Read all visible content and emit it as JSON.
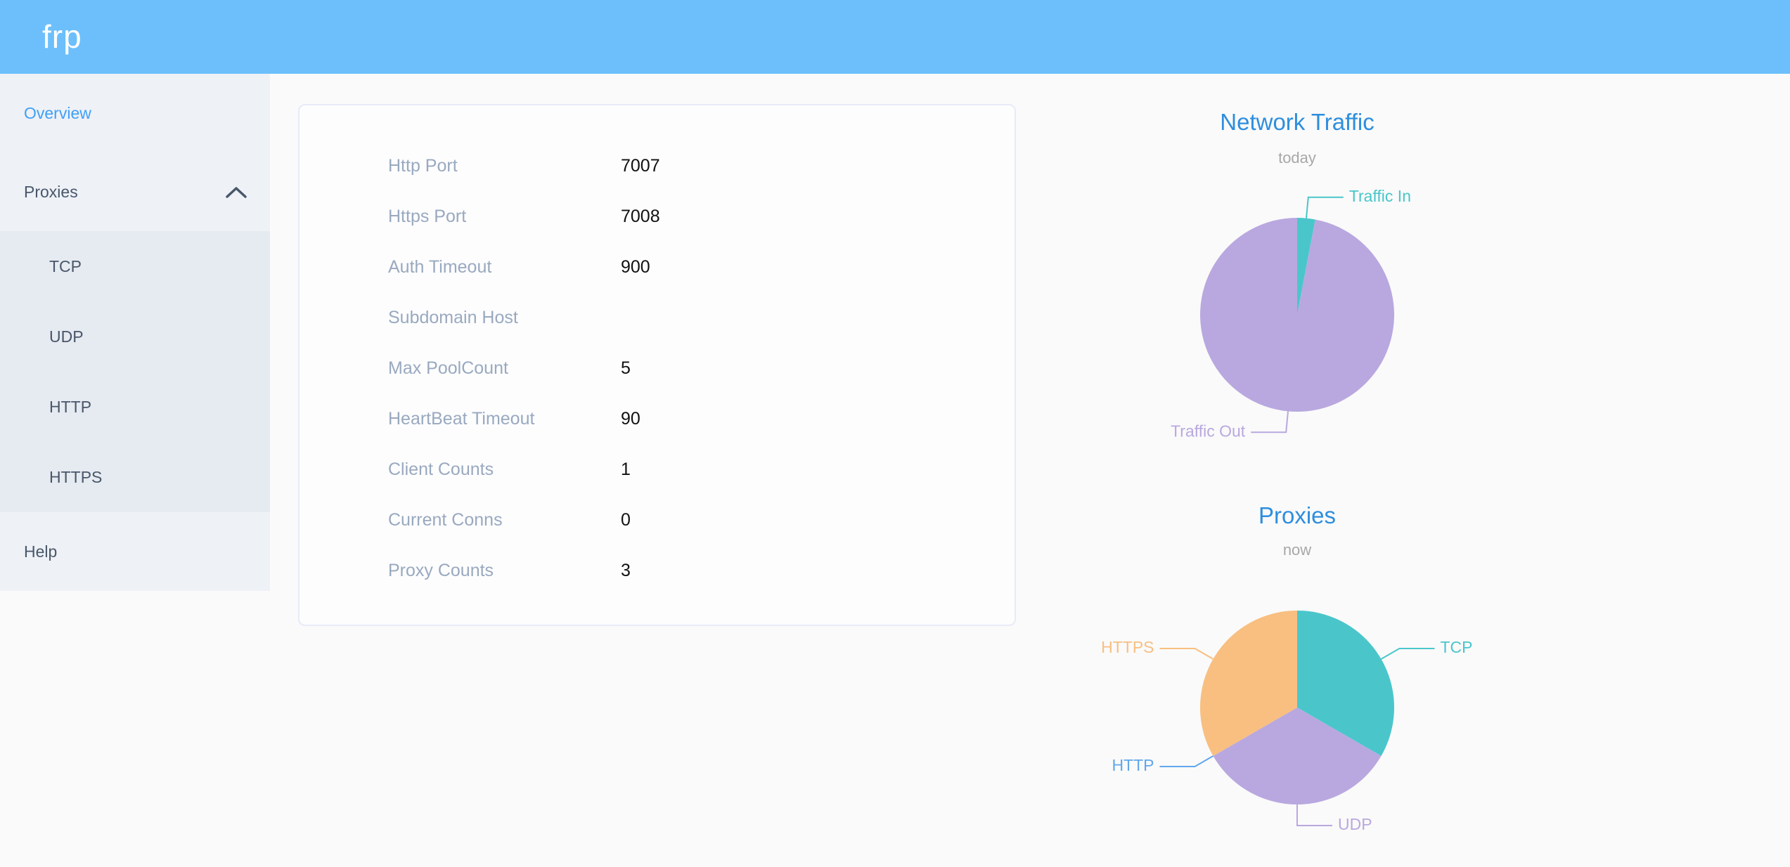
{
  "header": {
    "logo": "frp"
  },
  "sidebar": {
    "overview": "Overview",
    "proxies": "Proxies",
    "proxies_children": [
      "TCP",
      "UDP",
      "HTTP",
      "HTTPS"
    ],
    "help": "Help"
  },
  "server_info": {
    "rows": [
      {
        "label": "Http Port",
        "value": "7007"
      },
      {
        "label": "Https Port",
        "value": "7008"
      },
      {
        "label": "Auth Timeout",
        "value": "900"
      },
      {
        "label": "Subdomain Host",
        "value": ""
      },
      {
        "label": "Max PoolCount",
        "value": "5"
      },
      {
        "label": "HeartBeat Timeout",
        "value": "90"
      },
      {
        "label": "Client Counts",
        "value": "1"
      },
      {
        "label": "Current Conns",
        "value": "0"
      },
      {
        "label": "Proxy Counts",
        "value": "3"
      }
    ]
  },
  "chart_data": [
    {
      "type": "pie",
      "title": "Network Traffic",
      "subtitle": "today",
      "legend_position": "none",
      "label_style": "outside-colored",
      "series": [
        {
          "name": "Traffic In",
          "value": 3,
          "color": "#4ac6cb"
        },
        {
          "name": "Traffic Out",
          "value": 97,
          "color": "#b9a8df"
        }
      ]
    },
    {
      "type": "pie",
      "title": "Proxies",
      "subtitle": "now",
      "legend_position": "none",
      "label_style": "outside-colored",
      "series": [
        {
          "name": "TCP",
          "value": 1,
          "color": "#4ac6cb"
        },
        {
          "name": "UDP",
          "value": 1,
          "color": "#b9a8df"
        },
        {
          "name": "HTTP",
          "value": 0,
          "color": "#61a7eb"
        },
        {
          "name": "HTTPS",
          "value": 1,
          "color": "#f8bf80"
        }
      ]
    }
  ],
  "colors": {
    "header_bg": "#6cbffb",
    "sidebar_bg": "#eef1f6",
    "submenu_bg": "#e6eaf1",
    "menu_text": "#48576a",
    "active_menu_text": "#3fa0f7",
    "chart_title_blue": "#2e8ede",
    "chart_subtitle_gray": "#a8a8a8",
    "info_label_gray": "#99a9bf",
    "page_bg": "#fafafa"
  }
}
